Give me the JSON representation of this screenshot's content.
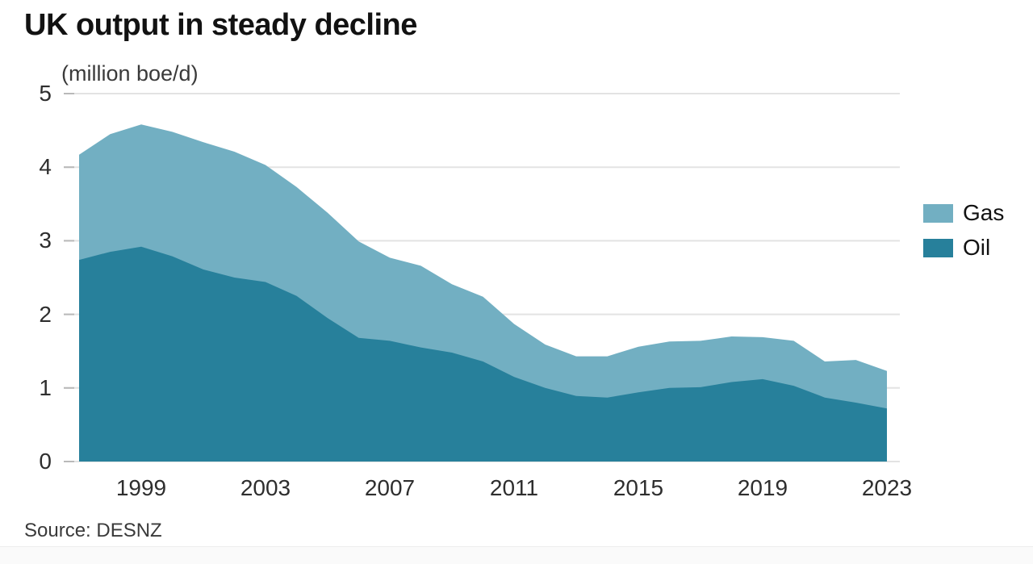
{
  "title": "UK output in steady decline",
  "units_label": "(million boe/d)",
  "source_label": "Source: DESNZ",
  "colors": {
    "gas": "#72afc2",
    "oil": "#27809b",
    "gridline": "#e3e3e3",
    "tick": "#b9b9b9",
    "text_dark": "#121212",
    "text_axis": "#2e2e2e"
  },
  "legend": {
    "items": [
      {
        "label": "Gas",
        "color": "#72afc2"
      },
      {
        "label": "Oil",
        "color": "#27809b"
      }
    ]
  },
  "chart_data": {
    "type": "area",
    "stacked": true,
    "title": "UK output in steady decline",
    "ylabel": "(million boe/d)",
    "x": [
      1997,
      1998,
      1999,
      2000,
      2001,
      2002,
      2003,
      2004,
      2005,
      2006,
      2007,
      2008,
      2009,
      2010,
      2011,
      2012,
      2013,
      2014,
      2015,
      2016,
      2017,
      2018,
      2019,
      2020,
      2021,
      2022,
      2023
    ],
    "series": [
      {
        "name": "Oil",
        "color": "#27809b",
        "values": [
          2.74,
          2.85,
          2.92,
          2.79,
          2.61,
          2.5,
          2.44,
          2.25,
          1.95,
          1.68,
          1.64,
          1.55,
          1.48,
          1.36,
          1.15,
          1.0,
          0.89,
          0.87,
          0.94,
          1.0,
          1.01,
          1.08,
          1.12,
          1.03,
          0.87,
          0.8,
          0.72
        ]
      },
      {
        "name": "Gas",
        "color": "#72afc2",
        "values": [
          1.43,
          1.6,
          1.66,
          1.69,
          1.73,
          1.71,
          1.59,
          1.48,
          1.43,
          1.31,
          1.13,
          1.11,
          0.93,
          0.88,
          0.72,
          0.59,
          0.54,
          0.56,
          0.62,
          0.63,
          0.63,
          0.62,
          0.57,
          0.61,
          0.49,
          0.58,
          0.51
        ]
      }
    ],
    "ylim": [
      0,
      5
    ],
    "y_ticks": [
      5,
      4,
      3,
      2,
      1,
      0
    ],
    "x_tick_labels": [
      1999,
      2003,
      2007,
      2011,
      2015,
      2019,
      2023
    ],
    "grid": "horizontal",
    "legend_position": "right"
  }
}
